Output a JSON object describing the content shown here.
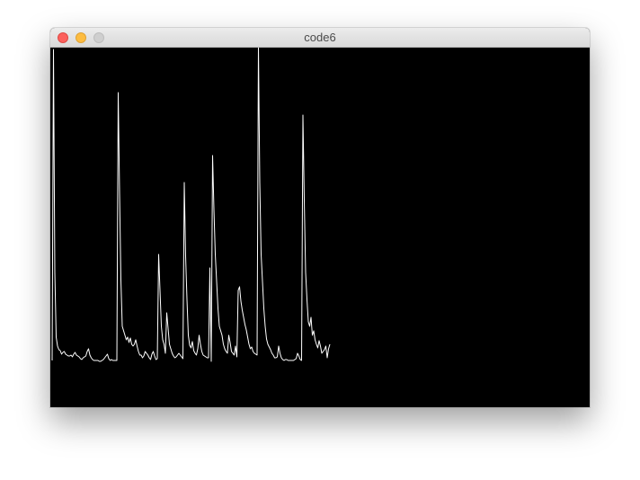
{
  "window": {
    "title": "code6",
    "buttons": {
      "close": "close-button",
      "minimize": "minimize-button",
      "zoom": "zoom-button"
    }
  },
  "colors": {
    "canvas_background": "#000000",
    "trace": "#ffffff",
    "close": "#fc605c",
    "minimize": "#fdbc40",
    "zoom_disabled": "#cfcfcf"
  },
  "chart_data": {
    "type": "line",
    "title": "",
    "xlabel": "",
    "ylabel": "",
    "series": [
      {
        "values": [
          2,
          348,
          100,
          28,
          18,
          14,
          13,
          9,
          11,
          12,
          9,
          8,
          7,
          7,
          8,
          6,
          9,
          11,
          8,
          7,
          6,
          4,
          3,
          5,
          6,
          7,
          12,
          15,
          8,
          5,
          3,
          2,
          2,
          2,
          2,
          1,
          1,
          2,
          3,
          5,
          7,
          9,
          4,
          2,
          3,
          2,
          2,
          2,
          2,
          300,
          190,
          92,
          40,
          35,
          30,
          25,
          28,
          22,
          27,
          20,
          18,
          20,
          25,
          18,
          12,
          8,
          8,
          5,
          7,
          12,
          10,
          8,
          5,
          3,
          9,
          12,
          7,
          3,
          4,
          120,
          80,
          40,
          25,
          20,
          10,
          55,
          38,
          20,
          15,
          10,
          7,
          5,
          6,
          8,
          10,
          8,
          6,
          4,
          200,
          118,
          70,
          30,
          19,
          16,
          23,
          13,
          10,
          8,
          15,
          30,
          20,
          12,
          8,
          7,
          6,
          5,
          5,
          105,
          1,
          230,
          170,
          120,
          90,
          60,
          40,
          35,
          30,
          20,
          15,
          12,
          10,
          30,
          22,
          12,
          10,
          8,
          18,
          6,
          80,
          84,
          68,
          58,
          50,
          42,
          36,
          28,
          20,
          15,
          17,
          12,
          10,
          9,
          8,
          352,
          200,
          120,
          90,
          60,
          40,
          26,
          20,
          17,
          14,
          10,
          8,
          5,
          5,
          6,
          18,
          10,
          5,
          3,
          2,
          3,
          3,
          2,
          2,
          2,
          2,
          2,
          3,
          4,
          10,
          7,
          3,
          2,
          275,
          180,
          100,
          70,
          45,
          40,
          50,
          30,
          35,
          25,
          20,
          16,
          24,
          18,
          10,
          12,
          14,
          18,
          5,
          15,
          20
        ]
      }
    ]
  }
}
